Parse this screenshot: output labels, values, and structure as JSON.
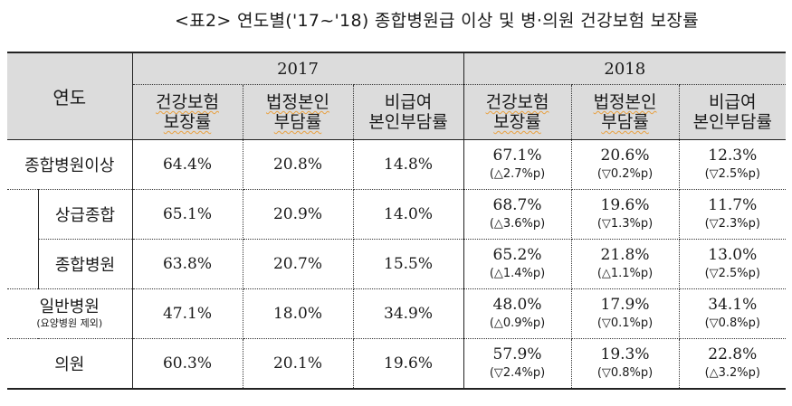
{
  "caption": "<표2> 연도별('17~'18) 종합병원급 이상 및 병·의원 건강보험 보장률",
  "header": {
    "row_label": "연도",
    "years": [
      "2017",
      "2018"
    ],
    "columns": [
      [
        "건강보험",
        "보장률"
      ],
      [
        "법정본인",
        "부담률"
      ],
      [
        "비급여",
        "본인부담률"
      ]
    ]
  },
  "rows": [
    {
      "label": "종합병원이상",
      "sub": "",
      "y2017": [
        "64.4%",
        "20.8%",
        "14.8%"
      ],
      "y2018": [
        [
          "67.1%",
          "(△2.7%p)"
        ],
        [
          "20.6%",
          "(▽0.2%p)"
        ],
        [
          "12.3%",
          "(▽2.5%p)"
        ]
      ]
    },
    {
      "label": "상급종합",
      "sub": "",
      "y2017": [
        "65.1%",
        "20.9%",
        "14.0%"
      ],
      "y2018": [
        [
          "68.7%",
          "(△3.6%p)"
        ],
        [
          "19.6%",
          "(▽1.3%p)"
        ],
        [
          "11.7%",
          "(▽2.3%p)"
        ]
      ]
    },
    {
      "label": "종합병원",
      "sub": "",
      "y2017": [
        "63.8%",
        "20.7%",
        "15.5%"
      ],
      "y2018": [
        [
          "65.2%",
          "(△1.4%p)"
        ],
        [
          "21.8%",
          "(△1.1%p)"
        ],
        [
          "13.0%",
          "(▽2.5%p)"
        ]
      ]
    },
    {
      "label": "일반병원",
      "sub": "(요양병원 제외)",
      "y2017": [
        "47.1%",
        "18.0%",
        "34.9%"
      ],
      "y2018": [
        [
          "48.0%",
          "(△0.9%p)"
        ],
        [
          "17.9%",
          "(▽0.1%p)"
        ],
        [
          "34.1%",
          "(▽0.8%p)"
        ]
      ]
    },
    {
      "label": "의원",
      "sub": "",
      "y2017": [
        "60.3%",
        "20.1%",
        "19.6%"
      ],
      "y2018": [
        [
          "57.9%",
          "(▽2.4%p)"
        ],
        [
          "19.3%",
          "(▽0.8%p)"
        ],
        [
          "22.8%",
          "(△3.2%p)"
        ]
      ]
    }
  ]
}
